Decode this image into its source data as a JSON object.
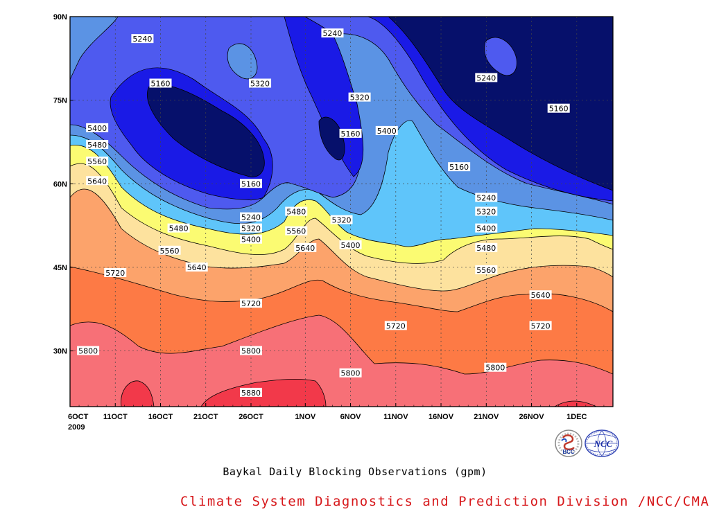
{
  "chart_data": {
    "type": "contour",
    "title": "Baykal Daily Blocking Observations (gpm)",
    "x_ticks": [
      "6OCT",
      "11OCT",
      "16OCT",
      "21OCT",
      "26OCT",
      "1NOV",
      "6NOV",
      "11NOV",
      "16NOV",
      "21NOV",
      "26NOV",
      "1DEC"
    ],
    "x_year": "2009",
    "x_range": [
      "2009-10-06",
      "2009-12-05"
    ],
    "y_ticks": [
      "30N",
      "45N",
      "60N",
      "75N",
      "90N"
    ],
    "y_range": [
      20,
      90
    ],
    "contour_levels": [
      5160,
      5240,
      5320,
      5400,
      5480,
      5560,
      5640,
      5720,
      5800,
      5880
    ],
    "contour_labels": [
      {
        "date": "2009-10-14",
        "lat": 86,
        "value": "5240"
      },
      {
        "date": "2009-10-16",
        "lat": 78,
        "value": "5160"
      },
      {
        "date": "2009-10-27",
        "lat": 78,
        "value": "5320"
      },
      {
        "date": "2009-11-04",
        "lat": 87,
        "value": "5240"
      },
      {
        "date": "2009-11-06",
        "lat": 69,
        "value": "5160"
      },
      {
        "date": "2009-11-10",
        "lat": 69.5,
        "value": "5400"
      },
      {
        "date": "2009-11-07",
        "lat": 75.5,
        "value": "5320"
      },
      {
        "date": "2009-11-21",
        "lat": 79,
        "value": "5240"
      },
      {
        "date": "2009-11-29",
        "lat": 73.5,
        "value": "5160"
      },
      {
        "date": "2009-11-18",
        "lat": 63,
        "value": "5160"
      },
      {
        "date": "2009-10-09",
        "lat": 70,
        "value": "5400"
      },
      {
        "date": "2009-10-09",
        "lat": 67,
        "value": "5480"
      },
      {
        "date": "2009-10-09",
        "lat": 64,
        "value": "5560"
      },
      {
        "date": "2009-10-09",
        "lat": 60.5,
        "value": "5640"
      },
      {
        "date": "2009-10-26",
        "lat": 60,
        "value": "5160"
      },
      {
        "date": "2009-10-26",
        "lat": 54,
        "value": "5240"
      },
      {
        "date": "2009-10-26",
        "lat": 52,
        "value": "5320"
      },
      {
        "date": "2009-10-26",
        "lat": 50,
        "value": "5400"
      },
      {
        "date": "2009-10-18",
        "lat": 52,
        "value": "5480"
      },
      {
        "date": "2009-10-17",
        "lat": 48,
        "value": "5560"
      },
      {
        "date": "2009-10-20",
        "lat": 45,
        "value": "5640"
      },
      {
        "date": "2009-10-11",
        "lat": 44,
        "value": "5720"
      },
      {
        "date": "2009-10-31",
        "lat": 55,
        "value": "5480"
      },
      {
        "date": "2009-10-31",
        "lat": 51.5,
        "value": "5560"
      },
      {
        "date": "2009-11-01",
        "lat": 48.5,
        "value": "5640"
      },
      {
        "date": "2009-11-05",
        "lat": 53.5,
        "value": "5320"
      },
      {
        "date": "2009-11-06",
        "lat": 49,
        "value": "5400"
      },
      {
        "date": "2009-11-21",
        "lat": 57.5,
        "value": "5240"
      },
      {
        "date": "2009-11-21",
        "lat": 55,
        "value": "5320"
      },
      {
        "date": "2009-11-21",
        "lat": 52,
        "value": "5400"
      },
      {
        "date": "2009-11-21",
        "lat": 48.5,
        "value": "5480"
      },
      {
        "date": "2009-11-21",
        "lat": 44.5,
        "value": "5560"
      },
      {
        "date": "2009-11-27",
        "lat": 40,
        "value": "5640"
      },
      {
        "date": "2009-11-27",
        "lat": 34.5,
        "value": "5720"
      },
      {
        "date": "2009-10-26",
        "lat": 38.5,
        "value": "5720"
      },
      {
        "date": "2009-11-11",
        "lat": 34.5,
        "value": "5720"
      },
      {
        "date": "2009-10-08",
        "lat": 30,
        "value": "5800"
      },
      {
        "date": "2009-10-26",
        "lat": 30,
        "value": "5800"
      },
      {
        "date": "2009-11-06",
        "lat": 26,
        "value": "5800"
      },
      {
        "date": "2009-11-22",
        "lat": 27,
        "value": "5800"
      },
      {
        "date": "2009-10-26",
        "lat": 22.5,
        "value": "5880"
      }
    ]
  },
  "colors": {
    "below_5160": "#06106b",
    "5160_5240": "#1a1ae6",
    "5240_5320": "#4e5aef",
    "5320_5400": "#5b93e4",
    "5400_5480": "#5fc5fa",
    "5480_5560": "#fbfb72",
    "5560_5640": "#fde29e",
    "5640_5720": "#fca36b",
    "5720_5800": "#fd7a45",
    "5800_5880": "#f77077",
    "above_5880": "#f2394a"
  },
  "footer": {
    "title": "Baykal Daily Blocking Observations (gpm)",
    "credit": "Climate System Diagnostics and Prediction Division /NCC/CMA"
  },
  "logos": {
    "left_text": "BCC",
    "right_text": "NCC"
  }
}
